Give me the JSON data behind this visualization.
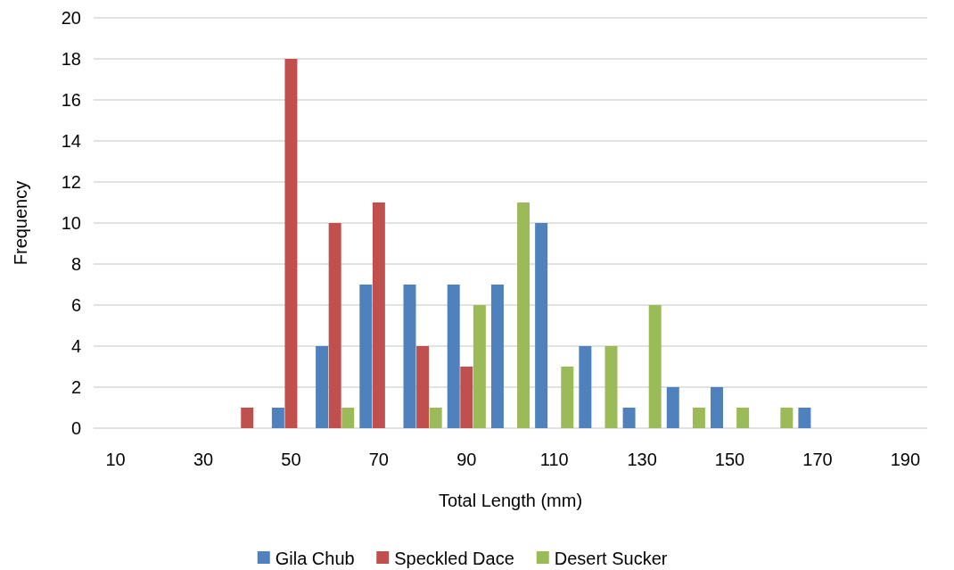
{
  "chart_data": {
    "type": "bar",
    "xlabel": "Total Length (mm)",
    "ylabel": "Frequency",
    "categories": [
      "10",
      null,
      "30",
      null,
      "50",
      null,
      "70",
      null,
      "90",
      null,
      "110",
      null,
      "130",
      null,
      "150",
      null,
      "170",
      null,
      "190"
    ],
    "series": [
      {
        "name": "Gila Chub",
        "color": "#4f81bd",
        "values": [
          0,
          0,
          0,
          0,
          1,
          4,
          7,
          7,
          7,
          7,
          10,
          4,
          1,
          2,
          2,
          0,
          1,
          0,
          0
        ]
      },
      {
        "name": "Speckled Dace",
        "color": "#c0504d",
        "values": [
          0,
          0,
          0,
          1,
          18,
          10,
          11,
          4,
          3,
          0,
          0,
          0,
          0,
          0,
          0,
          0,
          0,
          0,
          0
        ]
      },
      {
        "name": "Desert Sucker",
        "color": "#9bbb59",
        "values": [
          0,
          0,
          0,
          0,
          0,
          1,
          0,
          1,
          6,
          11,
          3,
          4,
          6,
          1,
          1,
          1,
          0,
          0,
          0
        ]
      }
    ],
    "ylim": [
      0,
      20
    ],
    "yticks": [
      0,
      2,
      4,
      6,
      8,
      10,
      12,
      14,
      16,
      18,
      20
    ],
    "grid": "y",
    "legend": "bottom"
  }
}
